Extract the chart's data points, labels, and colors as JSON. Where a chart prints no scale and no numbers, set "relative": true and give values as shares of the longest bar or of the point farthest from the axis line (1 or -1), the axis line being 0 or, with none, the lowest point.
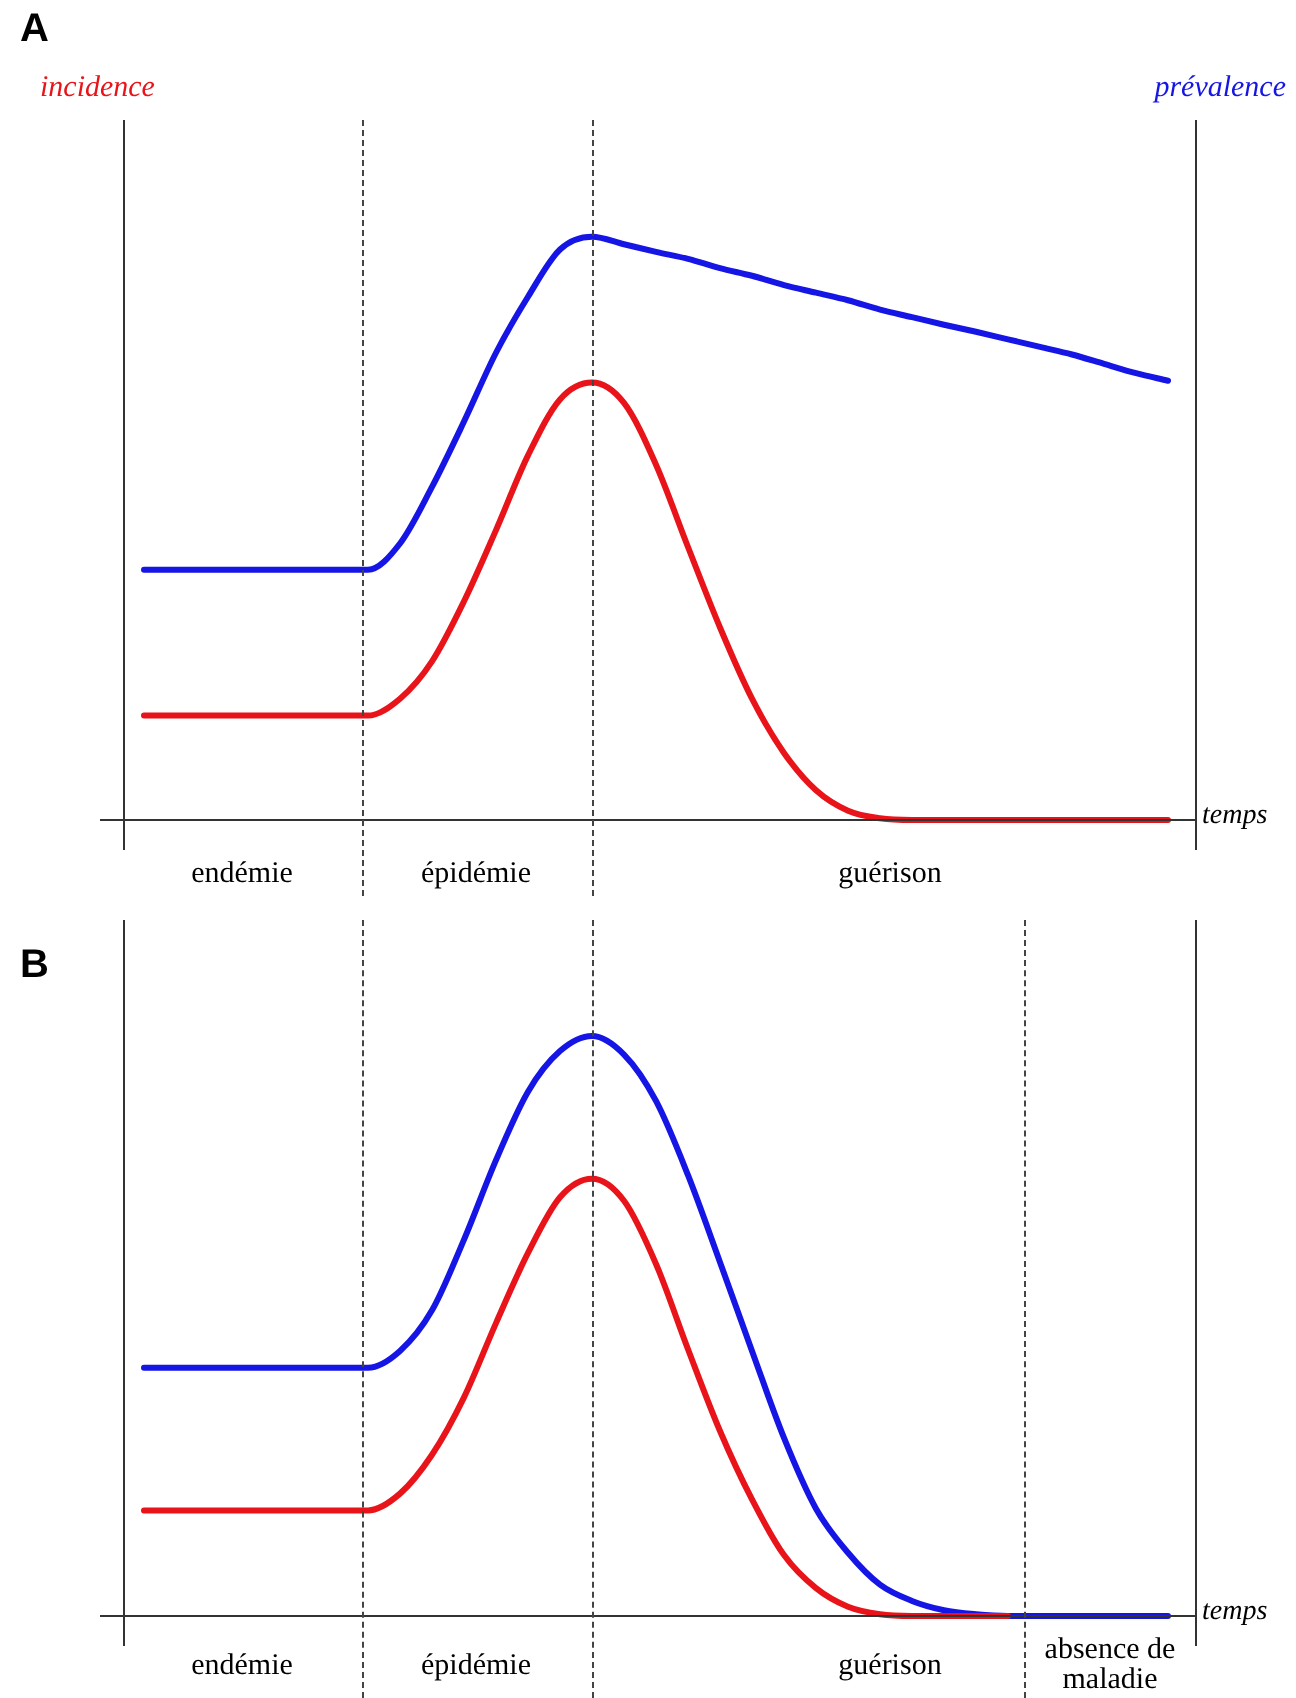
{
  "chart_data": [
    {
      "type": "line",
      "title": "A",
      "xlabel": "temps",
      "relative": true,
      "marker": "none",
      "line_style": "solid",
      "categories": [
        null,
        null,
        null,
        null,
        null,
        null,
        null,
        null,
        null,
        null,
        null,
        null,
        null,
        null,
        null,
        null,
        null,
        null,
        null,
        null,
        null,
        null,
        null,
        null,
        null,
        null,
        null,
        null,
        null,
        null,
        null,
        null,
        null
      ],
      "series": [
        {
          "name": "incidence",
          "color": "#e8141a",
          "values": [
            0.179,
            0.179,
            0.179,
            0.179,
            0.179,
            0.179,
            0.179,
            0.179,
            0.208,
            0.272,
            0.375,
            0.497,
            0.625,
            0.721,
            0.75,
            0.715,
            0.609,
            0.468,
            0.33,
            0.208,
            0.115,
            0.051,
            0.016,
            0.003,
            0,
            0,
            0,
            0,
            0,
            0,
            0,
            0,
            0
          ]
        },
        {
          "name": "prévalence",
          "color": "#1515e6",
          "values": [
            0.429,
            0.429,
            0.429,
            0.429,
            0.429,
            0.429,
            0.429,
            0.429,
            0.474,
            0.571,
            0.683,
            0.801,
            0.897,
            0.978,
            1,
            0.987,
            0.974,
            0.962,
            0.946,
            0.933,
            0.917,
            0.904,
            0.891,
            0.875,
            0.862,
            0.849,
            0.837,
            0.824,
            0.811,
            0.798,
            0.782,
            0.766,
            0.753
          ]
        }
      ],
      "annotations": [
        "endémie",
        "épidémie",
        "guérison"
      ]
    },
    {
      "type": "line",
      "title": "B",
      "xlabel": "temps",
      "relative": true,
      "marker": "none",
      "line_style": "solid",
      "categories": [
        null,
        null,
        null,
        null,
        null,
        null,
        null,
        null,
        null,
        null,
        null,
        null,
        null,
        null,
        null,
        null,
        null,
        null,
        null,
        null,
        null,
        null,
        null,
        null,
        null,
        null,
        null,
        null,
        null,
        null,
        null,
        null,
        null
      ],
      "series": [
        {
          "color": "#e8141a",
          "values": [
            0.182,
            0.182,
            0.182,
            0.182,
            0.182,
            0.182,
            0.182,
            0.182,
            0.211,
            0.278,
            0.377,
            0.505,
            0.626,
            0.722,
            0.754,
            0.716,
            0.607,
            0.46,
            0.319,
            0.201,
            0.105,
            0.048,
            0.016,
            0.003,
            0,
            0,
            0,
            0,
            null,
            null,
            null,
            null,
            null
          ]
        },
        {
          "color": "#1515e6",
          "values": [
            0.428,
            0.428,
            0.428,
            0.428,
            0.428,
            0.428,
            0.428,
            0.428,
            0.457,
            0.527,
            0.649,
            0.786,
            0.904,
            0.974,
            1,
            0.968,
            0.888,
            0.76,
            0.61,
            0.457,
            0.307,
            0.185,
            0.109,
            0.054,
            0.026,
            0.01,
            0.003,
            0,
            0,
            0,
            0,
            0,
            0
          ]
        }
      ],
      "annotations": [
        "endémie",
        "épidémie",
        "guérison",
        "absence de maladie"
      ]
    }
  ]
}
